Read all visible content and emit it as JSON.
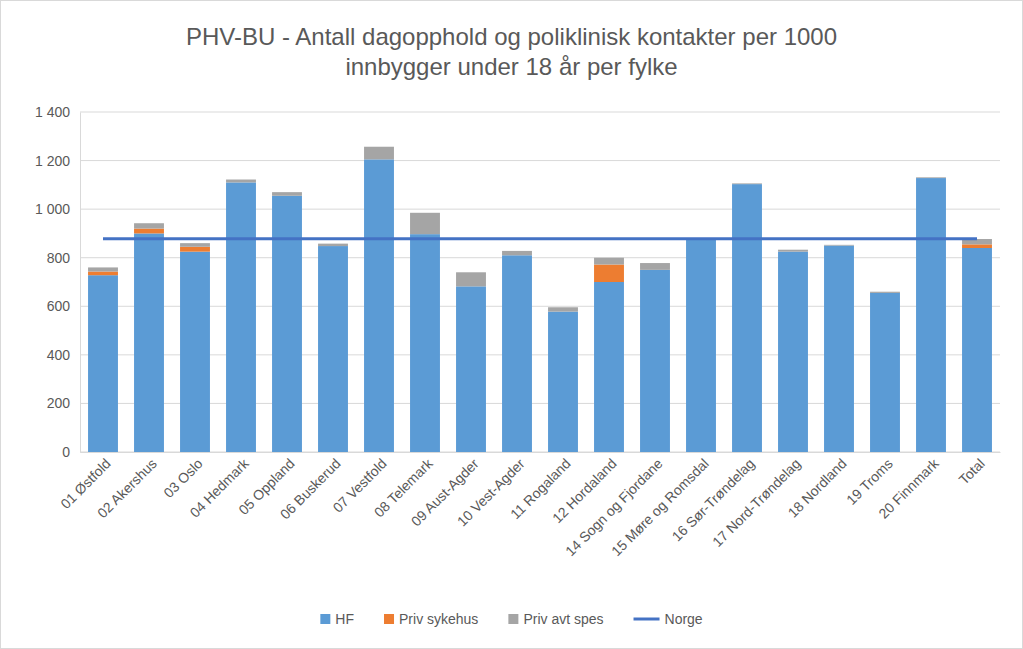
{
  "chart_data": {
    "type": "bar",
    "stacked": true,
    "title": "PHV-BU - Antall dagopphold og poliklinisk kontakter per 1000 innbygger under 18 år per fylke",
    "categories": [
      "01 Østfold",
      "02 Akershus",
      "03 Oslo",
      "04 Hedmark",
      "05 Oppland",
      "06 Buskerud",
      "07 Vestfold",
      "08 Telemark",
      "09 Aust-Agder",
      "10 Vest-Agder",
      "11 Rogaland",
      "12 Hordaland",
      "14 Sogn og Fjordane",
      "15 Møre og Romsdal",
      "16 Sør-Trøndelag",
      "17 Nord-Trøndelag",
      "18 Nordland",
      "19 Troms",
      "20 Finnmark",
      "Total"
    ],
    "series": [
      {
        "name": "HF",
        "type": "bar",
        "color": "#5b9bd5",
        "values": [
          728,
          900,
          825,
          1110,
          1055,
          848,
          1205,
          897,
          682,
          810,
          578,
          700,
          750,
          876,
          1103,
          825,
          850,
          655,
          1128,
          840
        ]
      },
      {
        "name": "Priv sykehus",
        "type": "bar",
        "color": "#ed7d31",
        "values": [
          15,
          20,
          20,
          0,
          0,
          0,
          0,
          0,
          0,
          0,
          0,
          72,
          0,
          0,
          0,
          0,
          0,
          0,
          0,
          15
        ]
      },
      {
        "name": "Priv avt spes",
        "type": "bar",
        "color": "#a5a5a5",
        "values": [
          17,
          22,
          15,
          12,
          15,
          10,
          52,
          88,
          58,
          18,
          18,
          28,
          28,
          4,
          3,
          8,
          3,
          5,
          3,
          22
        ]
      },
      {
        "name": "Norge",
        "type": "line",
        "color": "#4472c4",
        "line_style": "solid",
        "values": [
          878,
          878,
          878,
          878,
          878,
          878,
          878,
          878,
          878,
          878,
          878,
          878,
          878,
          878,
          878,
          878,
          878,
          878,
          878,
          878
        ]
      }
    ],
    "ylim": [
      0,
      1400
    ],
    "yticks": [
      0,
      200,
      400,
      600,
      800,
      {
        "value": 1000,
        "label": "1 000"
      },
      {
        "value": 1200,
        "label": "1 200"
      },
      {
        "value": 1400,
        "label": "1 400"
      }
    ],
    "grid": true,
    "legend": "bottom"
  }
}
